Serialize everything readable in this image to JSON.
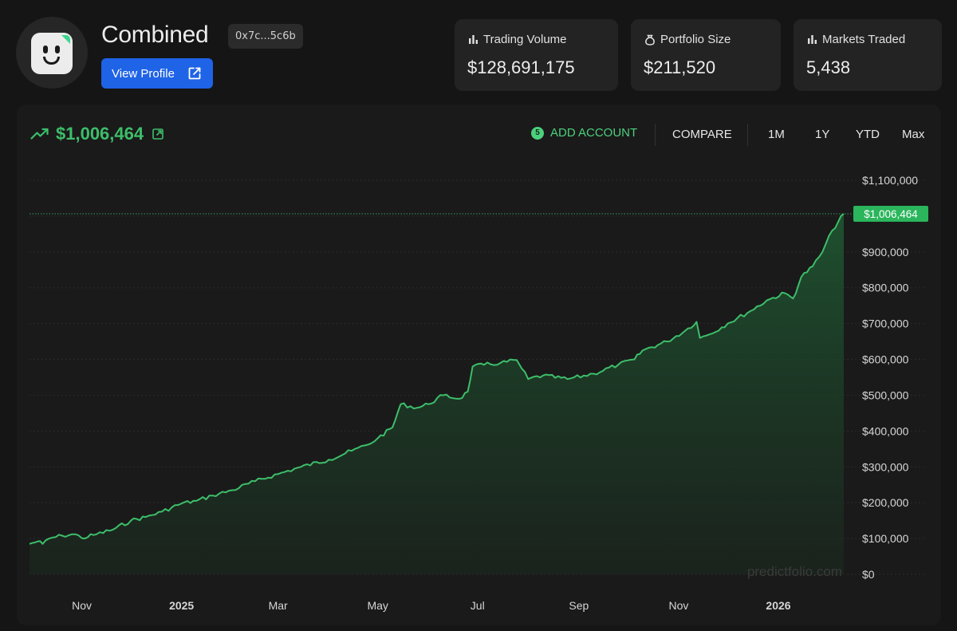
{
  "profile": {
    "title": "Combined",
    "address": "0x7c...5c6b",
    "view_profile_label": "View Profile"
  },
  "stats": [
    {
      "label": "Trading Volume",
      "value": "$128,691,175",
      "icon": "bar-chart-icon"
    },
    {
      "label": "Portfolio Size",
      "value": "$211,520",
      "icon": "money-bag-icon"
    },
    {
      "label": "Markets Traded",
      "value": "5,438",
      "icon": "bar-chart-icon"
    }
  ],
  "chart_header": {
    "total_value": "$1,006,464",
    "add_account_count": "5",
    "add_account_label": "ADD ACCOUNT",
    "compare_label": "COMPARE",
    "ranges": [
      "1M",
      "1Y",
      "YTD",
      "Max"
    ]
  },
  "colors": {
    "accent_green": "#3dbe6a",
    "button_blue": "#1f63e6",
    "background": "#151515"
  },
  "watermark": "predictfolio.com",
  "chart_data": {
    "type": "area",
    "title": "",
    "xlabel": "",
    "ylabel": "",
    "ylim": [
      0,
      1100000
    ],
    "y_ticks": [
      "$0",
      "$100,000",
      "$200,000",
      "$300,000",
      "$400,000",
      "$500,000",
      "$600,000",
      "$700,000",
      "$800,000",
      "$900,000",
      "$1,100,000"
    ],
    "y_tick_values": [
      0,
      100000,
      200000,
      300000,
      400000,
      500000,
      600000,
      700000,
      800000,
      900000,
      1100000
    ],
    "x_ticks": [
      {
        "label": "Nov",
        "date": "2024-11-01",
        "bold": false
      },
      {
        "label": "2025",
        "date": "2025-01-01",
        "bold": true
      },
      {
        "label": "Mar",
        "date": "2025-03-01",
        "bold": false
      },
      {
        "label": "May",
        "date": "2025-05-01",
        "bold": false
      },
      {
        "label": "Jul",
        "date": "2025-07-01",
        "bold": false
      },
      {
        "label": "Sep",
        "date": "2025-09-01",
        "bold": false
      },
      {
        "label": "Nov",
        "date": "2025-11-01",
        "bold": false
      },
      {
        "label": "2026",
        "date": "2026-01-01",
        "bold": true
      }
    ],
    "current_value": 1006464,
    "current_label": "$1,006,464",
    "grid": true,
    "series": [
      {
        "points": [
          [
            "2024-09-30",
            85000
          ],
          [
            "2024-10-05",
            92000
          ],
          [
            "2024-10-08",
            85000
          ],
          [
            "2024-10-12",
            100000
          ],
          [
            "2024-10-20",
            108000
          ],
          [
            "2024-10-28",
            112000
          ],
          [
            "2024-11-01",
            101000
          ],
          [
            "2024-11-10",
            112000
          ],
          [
            "2024-11-20",
            125000
          ],
          [
            "2024-12-01",
            150000
          ],
          [
            "2024-12-10",
            160000
          ],
          [
            "2024-12-20",
            175000
          ],
          [
            "2025-01-01",
            198000
          ],
          [
            "2025-01-10",
            205000
          ],
          [
            "2025-01-20",
            220000
          ],
          [
            "2025-02-01",
            235000
          ],
          [
            "2025-02-15",
            260000
          ],
          [
            "2025-03-01",
            280000
          ],
          [
            "2025-03-15",
            300000
          ],
          [
            "2025-04-01",
            320000
          ],
          [
            "2025-04-15",
            345000
          ],
          [
            "2025-04-25",
            362000
          ],
          [
            "2025-05-01",
            380000
          ],
          [
            "2025-05-10",
            410000
          ],
          [
            "2025-05-15",
            475000
          ],
          [
            "2025-05-25",
            465000
          ],
          [
            "2025-06-01",
            475000
          ],
          [
            "2025-06-10",
            500000
          ],
          [
            "2025-06-20",
            490000
          ],
          [
            "2025-06-25",
            510000
          ],
          [
            "2025-06-28",
            580000
          ],
          [
            "2025-07-05",
            585000
          ],
          [
            "2025-07-15",
            590000
          ],
          [
            "2025-07-25",
            598000
          ],
          [
            "2025-07-28",
            575000
          ],
          [
            "2025-08-01",
            545000
          ],
          [
            "2025-08-10",
            555000
          ],
          [
            "2025-08-25",
            545000
          ],
          [
            "2025-09-10",
            560000
          ],
          [
            "2025-09-25",
            585000
          ],
          [
            "2025-10-05",
            600000
          ],
          [
            "2025-10-10",
            625000
          ],
          [
            "2025-10-25",
            650000
          ],
          [
            "2025-11-05",
            680000
          ],
          [
            "2025-11-12",
            705000
          ],
          [
            "2025-11-14",
            660000
          ],
          [
            "2025-11-20",
            670000
          ],
          [
            "2025-12-01",
            700000
          ],
          [
            "2025-12-15",
            735000
          ],
          [
            "2025-12-25",
            765000
          ],
          [
            "2026-01-05",
            785000
          ],
          [
            "2026-01-10",
            770000
          ],
          [
            "2026-01-15",
            830000
          ],
          [
            "2026-01-22",
            860000
          ],
          [
            "2026-01-28",
            900000
          ],
          [
            "2026-02-03",
            960000
          ],
          [
            "2026-02-10",
            1006464
          ]
        ]
      }
    ]
  }
}
